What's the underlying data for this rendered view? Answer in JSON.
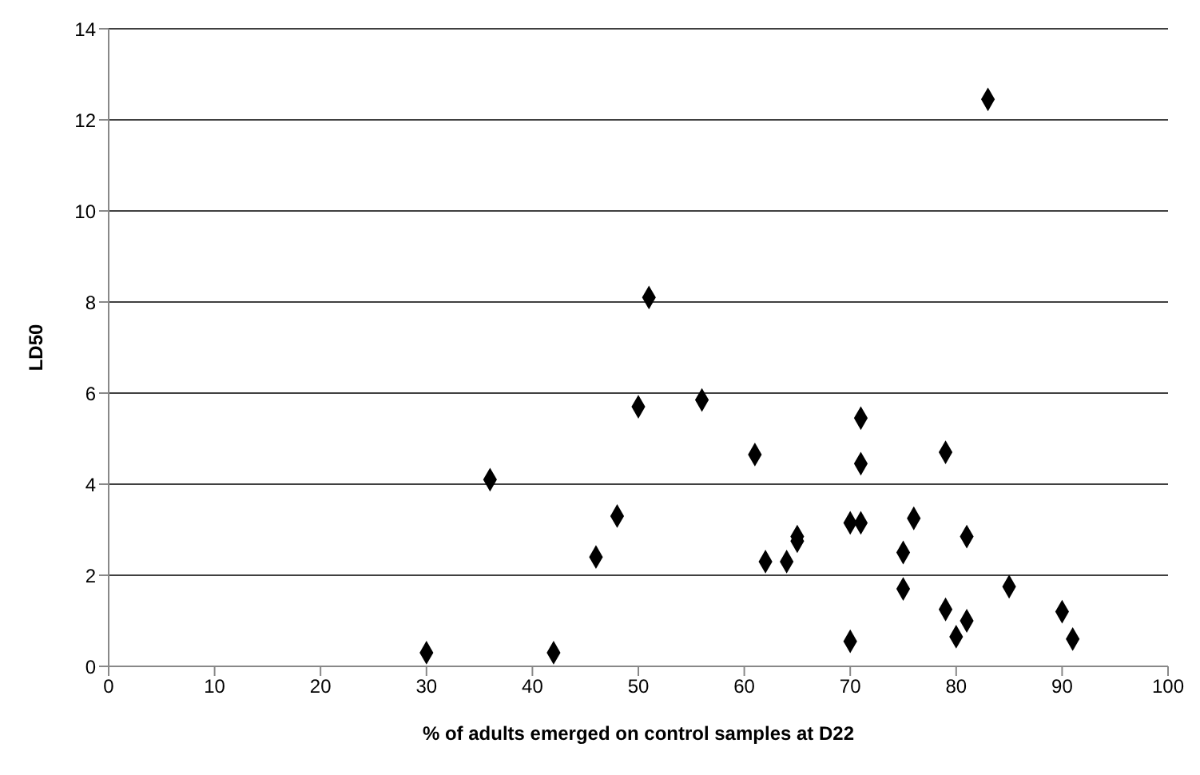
{
  "chart_data": {
    "type": "scatter",
    "xlabel": "% of adults emerged on control samples at D22",
    "ylabel": "LD50",
    "x": [
      30,
      36,
      42,
      46,
      48,
      50,
      51,
      56,
      61,
      62,
      64,
      65,
      65,
      70,
      70,
      71,
      71,
      71,
      75,
      75,
      76,
      79,
      79,
      80,
      81,
      81,
      83,
      85,
      90,
      91
    ],
    "series": [
      {
        "color": "#000000",
        "values": [
          0.3,
          4.1,
          0.3,
          2.4,
          3.3,
          5.7,
          8.1,
          5.85,
          4.65,
          2.3,
          2.3,
          2.75,
          2.85,
          3.15,
          0.55,
          5.45,
          4.45,
          3.15,
          2.5,
          1.7,
          3.25,
          4.7,
          1.25,
          0.65,
          2.85,
          1.0,
          12.45,
          1.75,
          1.2,
          0.6
        ]
      }
    ],
    "xlim": [
      0,
      100
    ],
    "xticks": [
      0,
      10,
      20,
      30,
      40,
      50,
      60,
      70,
      80,
      90,
      100
    ],
    "ylim": [
      0,
      14
    ],
    "yticks": [
      0,
      2,
      4,
      6,
      8,
      10,
      12,
      14
    ],
    "grid": "y",
    "marker": "diamond"
  }
}
